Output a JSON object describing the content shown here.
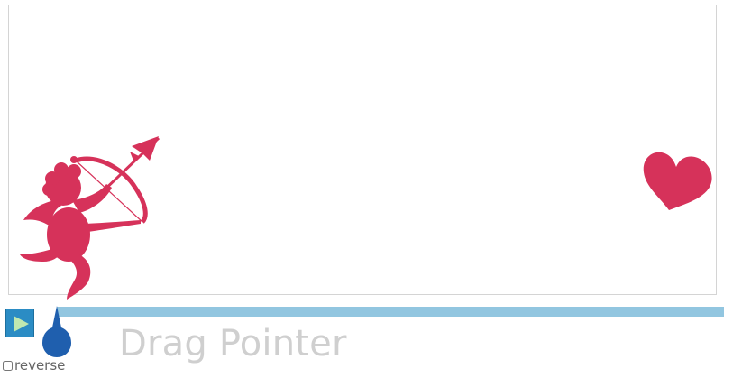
{
  "controls": {
    "drag_label": "Drag Pointer",
    "reverse_label": "reverse",
    "reverse_checked": false
  },
  "icons": {
    "play": "play-icon",
    "pointer": "drag-pointer-icon",
    "cupid": "cupid-icon",
    "heart": "heart-icon"
  },
  "colors": {
    "cupid": "#d6325a",
    "heart": "#d6325a",
    "play_button": "#2b8cc4",
    "play_triangle": "#bfe8b0",
    "track": "#92c6e0",
    "pointer": "#1f5fae",
    "drag_label": "#cfcfcf"
  },
  "timeline": {
    "progress": 0
  }
}
